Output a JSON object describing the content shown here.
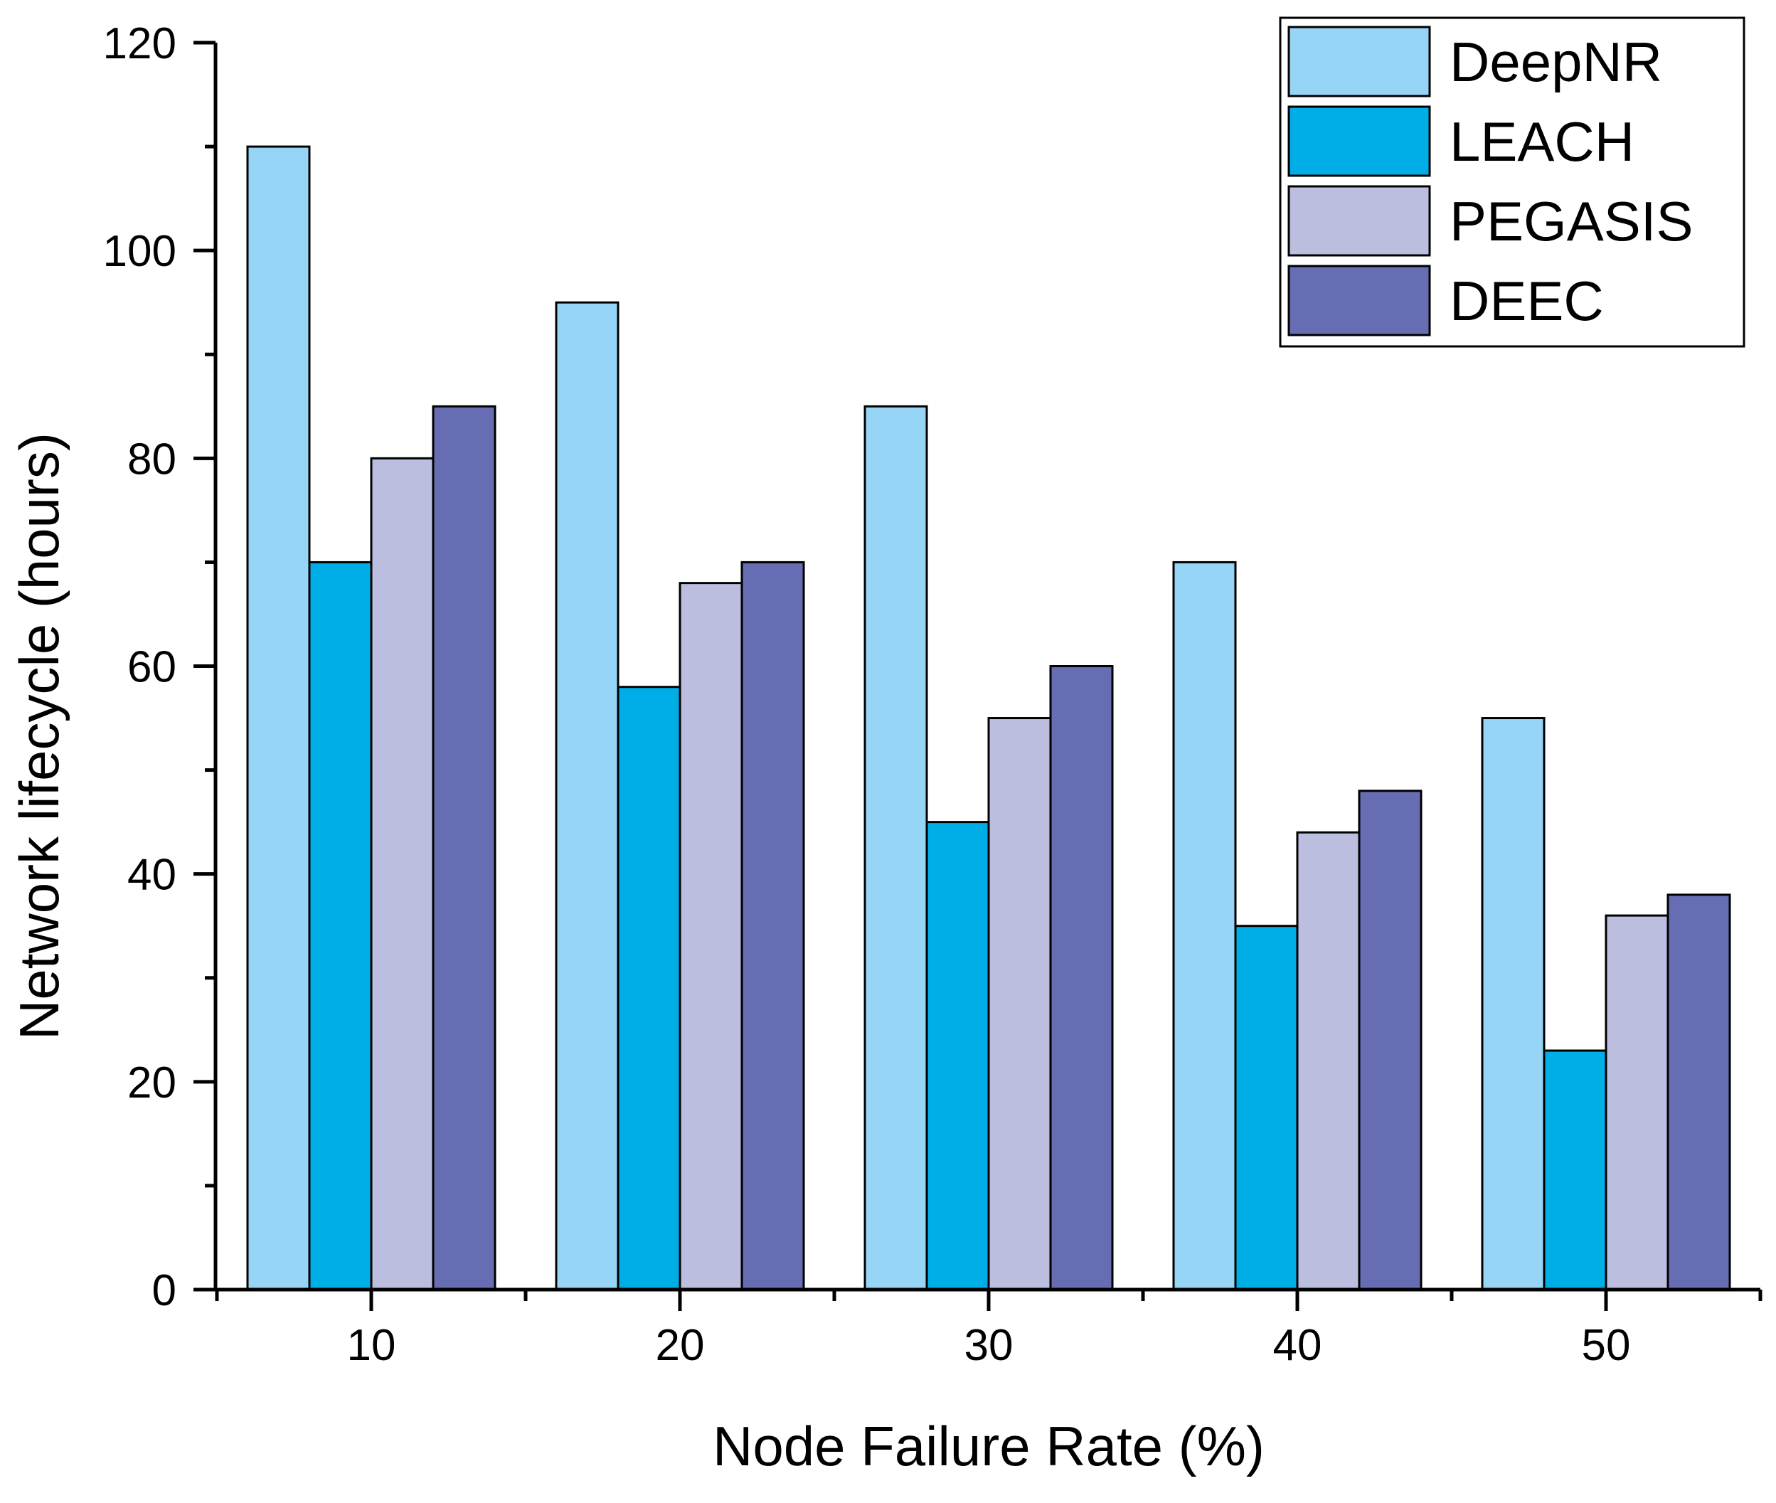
{
  "chart_data": {
    "type": "bar",
    "title": "",
    "xlabel": "Node Failure Rate (%)",
    "ylabel": "Network lifecycle (hours)",
    "categories": [
      "10",
      "20",
      "30",
      "40",
      "50"
    ],
    "series": [
      {
        "name": "DeepNR",
        "color": "#97d5f6",
        "values": [
          110,
          95,
          85,
          70,
          55
        ]
      },
      {
        "name": "LEACH",
        "color": "#00aee7",
        "values": [
          70,
          58,
          45,
          35,
          23
        ]
      },
      {
        "name": "PEGASIS",
        "color": "#bcbedf",
        "values": [
          80,
          68,
          55,
          44,
          36
        ]
      },
      {
        "name": "DEEC",
        "color": "#666db3",
        "values": [
          85,
          70,
          60,
          48,
          38
        ]
      }
    ],
    "ylim": [
      0,
      120
    ],
    "yticks": [
      0,
      20,
      40,
      60,
      80,
      100,
      120
    ],
    "grid": false,
    "legend_position": "top-right"
  }
}
